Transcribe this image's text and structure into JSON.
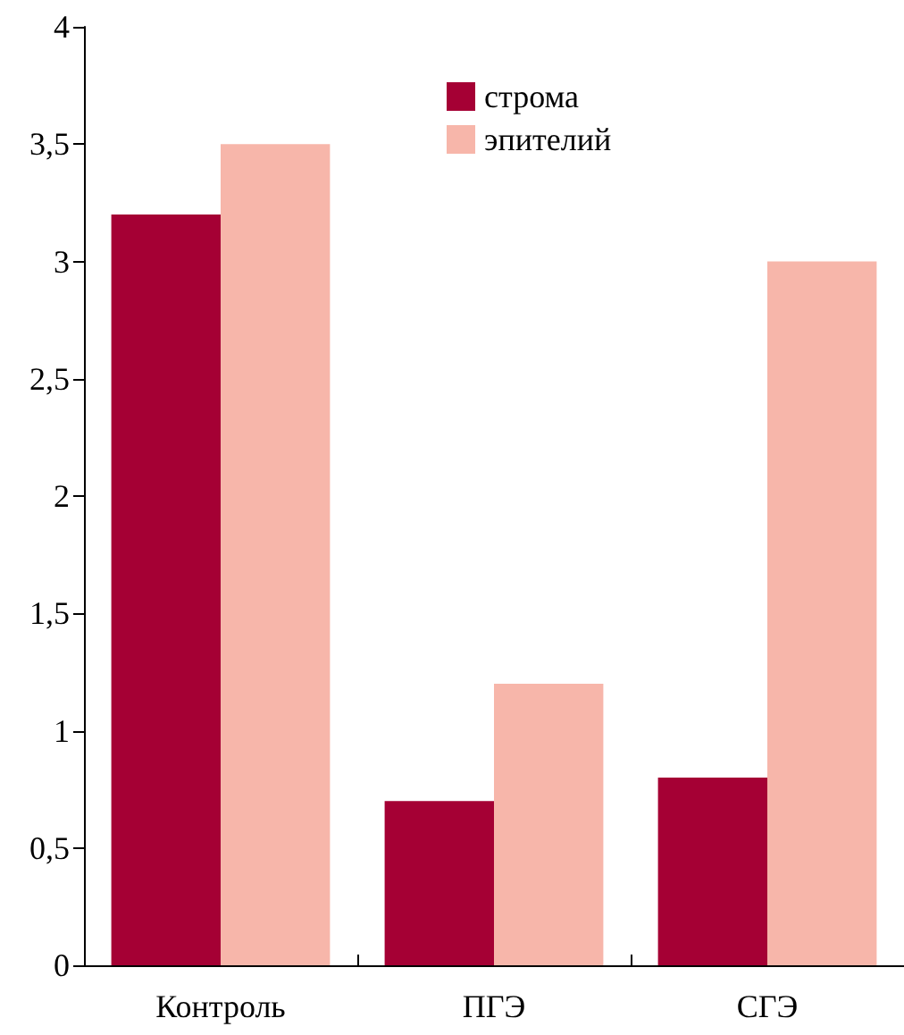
{
  "chart_data": {
    "type": "bar",
    "categories": [
      "Контроль",
      "ПГЭ",
      "СГЭ"
    ],
    "series": [
      {
        "name": "строма",
        "color": "#a50034",
        "values": [
          3.2,
          0.7,
          0.8
        ]
      },
      {
        "name": "эпителий",
        "color": "#f7b6aa",
        "values": [
          3.5,
          1.2,
          3.0
        ]
      }
    ],
    "ylim": [
      0,
      4
    ],
    "yticks": [
      0,
      {
        "value": 0.5,
        "label": "0,5"
      },
      1,
      {
        "value": 1.5,
        "label": "1,5"
      },
      2,
      {
        "value": 2.5,
        "label": "2,5"
      },
      3,
      {
        "value": 3.5,
        "label": "3,5"
      },
      4
    ],
    "grid": false,
    "legend": "top"
  }
}
